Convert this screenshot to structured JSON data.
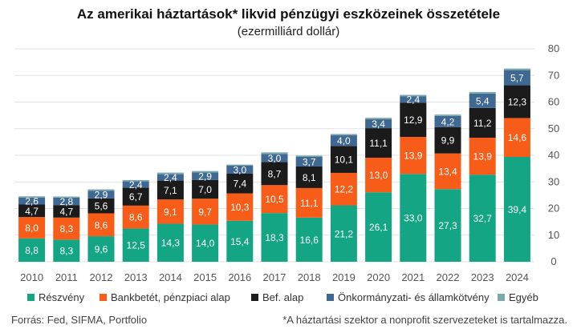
{
  "chart_data": {
    "type": "bar",
    "stacked": true,
    "title": "Az amerikai háztartások* likvid pénzügyi eszközeinek összetétele",
    "subtitle": "(ezermilliárd dollár)",
    "categories": [
      "2010",
      "2011",
      "2012",
      "2013",
      "2014",
      "2015",
      "2016",
      "2017",
      "2018",
      "2019",
      "2020",
      "2021",
      "2022",
      "2023",
      "2024"
    ],
    "series": [
      {
        "name": "Részvény",
        "color": "#13a584",
        "values": [
          8.8,
          8.3,
          9.6,
          12.5,
          14.3,
          14.0,
          15.4,
          18.3,
          16.6,
          21.2,
          26.1,
          33.0,
          27.3,
          32.7,
          39.4
        ],
        "labels": [
          "8,8",
          "8,3",
          "9,6",
          "12,5",
          "14,3",
          "14,0",
          "15,4",
          "18,3",
          "16,6",
          "21,2",
          "26,1",
          "33,0",
          "27,3",
          "32,7",
          "39,4"
        ]
      },
      {
        "name": "Bankbetét, pénzpiaci alap",
        "color": "#f75d18",
        "values": [
          8.0,
          8.3,
          8.6,
          8.6,
          9.1,
          9.7,
          10.3,
          10.5,
          11.1,
          12.2,
          13.0,
          13.9,
          13.4,
          13.9,
          14.6
        ],
        "labels": [
          "8,0",
          "8,3",
          "8,6",
          "8,6",
          "9,1",
          "9,7",
          "10,3",
          "10,5",
          "11,1",
          "12,2",
          "13,0",
          "13,9",
          "13,4",
          "13,9",
          "14,6"
        ]
      },
      {
        "name": "Bef. alap",
        "color": "#1b1b1b",
        "values": [
          4.7,
          4.7,
          5.6,
          6.7,
          7.1,
          7.0,
          7.4,
          8.7,
          8.1,
          10.1,
          11.1,
          12.9,
          9.9,
          11.2,
          12.3
        ],
        "labels": [
          "4,7",
          "4,7",
          "5,6",
          "6,7",
          "7,1",
          "7,0",
          "7,4",
          "8,7",
          "8,1",
          "10,1",
          "11,1",
          "12,9",
          "9,9",
          "11,2",
          "12,3"
        ]
      },
      {
        "name": "Önkormányzati- és államkötvény",
        "color": "#3f6893",
        "values": [
          2.6,
          2.8,
          2.9,
          2.4,
          2.4,
          2.9,
          3.0,
          3.0,
          3.7,
          4.0,
          3.4,
          2.4,
          4.2,
          5.4,
          5.7
        ],
        "labels": [
          "2,6",
          "2,8",
          "2,9",
          "2,4",
          "2,4",
          "2,9",
          "3,0",
          "3,0",
          "3,7",
          "4,0",
          "3,4",
          "2,4",
          "4,2",
          "5,4",
          "5,7"
        ]
      },
      {
        "name": "Egyéb",
        "color": "#7aa9ab",
        "values": [
          0.5,
          0.4,
          0.5,
          0.5,
          0.6,
          0.5,
          0.4,
          0.6,
          0.4,
          0.5,
          0.5,
          0.5,
          0.5,
          0.6,
          0.6
        ]
      }
    ],
    "y_axis": {
      "min": 0,
      "max": 80,
      "ticks": [
        0,
        10,
        20,
        30,
        40,
        50,
        60,
        70,
        80
      ],
      "position": "right"
    },
    "grid": true,
    "legend": "bottom"
  },
  "footer": {
    "source": "Forrás: Fed, SIFMA, Portfolio",
    "note": "*A háztartási szektor a nonprofit szervezeteket is tartalmazza."
  }
}
